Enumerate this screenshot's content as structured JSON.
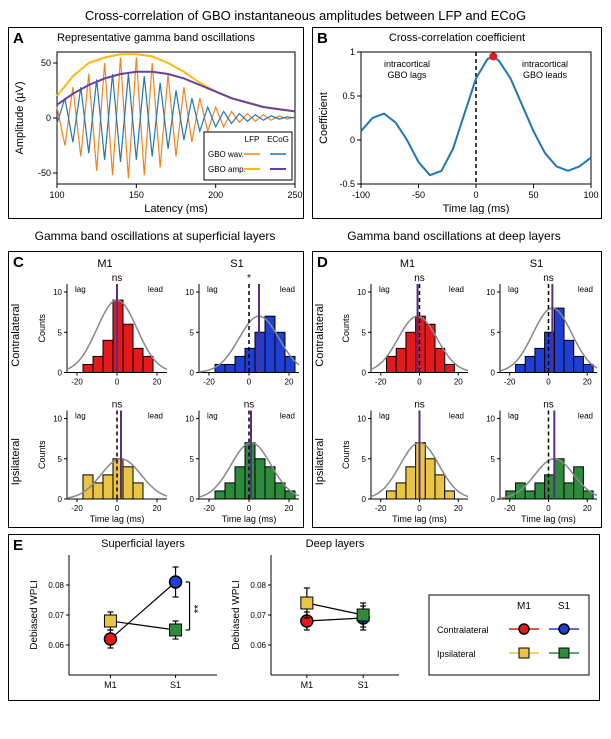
{
  "colors": {
    "lfp_wav": "#f58220",
    "lfp_amp": "#fdb813",
    "ecog_wav": "#1f77b4",
    "ecog_amp": "#6b3fa0",
    "red": "#e31a1c",
    "blue": "#1f3fd4",
    "yellow": "#e8c547",
    "green": "#2e8b3d",
    "gray": "#888888",
    "black": "#000000"
  },
  "mainTitle": "Cross-correlation of GBO instantaneous amplitudes between LFP and ECoG",
  "panelA": {
    "title": "Representative gamma band oscillations",
    "xlabel": "Latency (ms)",
    "ylabel": "Amplitude (µV)",
    "xlim": [
      100,
      250
    ],
    "xticks": [
      100,
      150,
      200,
      250
    ],
    "ylim": [
      -60,
      60
    ],
    "yticks": [
      -50,
      0,
      50
    ],
    "legend": {
      "header": [
        "LFP",
        "ECoG"
      ],
      "rows": [
        "GBO wav.",
        "GBO amp."
      ]
    },
    "series": {
      "lfp_wav": [
        [
          100,
          10
        ],
        [
          105,
          -25
        ],
        [
          110,
          28
        ],
        [
          115,
          -35
        ],
        [
          120,
          40
        ],
        [
          125,
          -48
        ],
        [
          130,
          50
        ],
        [
          135,
          -52
        ],
        [
          140,
          55
        ],
        [
          145,
          -55
        ],
        [
          150,
          55
        ],
        [
          155,
          -52
        ],
        [
          160,
          50
        ],
        [
          165,
          -45
        ],
        [
          170,
          40
        ],
        [
          175,
          -35
        ],
        [
          180,
          28
        ],
        [
          185,
          -22
        ],
        [
          190,
          18
        ],
        [
          195,
          -12
        ],
        [
          200,
          10
        ],
        [
          205,
          -8
        ],
        [
          210,
          6
        ],
        [
          215,
          -4
        ],
        [
          220,
          4
        ],
        [
          225,
          -3
        ],
        [
          230,
          3
        ],
        [
          235,
          -2
        ],
        [
          240,
          2
        ],
        [
          245,
          -1
        ],
        [
          250,
          1
        ]
      ],
      "ecog_wav": [
        [
          100,
          -5
        ],
        [
          105,
          18
        ],
        [
          110,
          -22
        ],
        [
          115,
          28
        ],
        [
          120,
          -32
        ],
        [
          125,
          35
        ],
        [
          130,
          -38
        ],
        [
          135,
          40
        ],
        [
          140,
          -40
        ],
        [
          145,
          40
        ],
        [
          150,
          -38
        ],
        [
          155,
          38
        ],
        [
          160,
          -35
        ],
        [
          165,
          32
        ],
        [
          170,
          -28
        ],
        [
          175,
          25
        ],
        [
          180,
          -20
        ],
        [
          185,
          18
        ],
        [
          190,
          -12
        ],
        [
          195,
          10
        ],
        [
          200,
          -8
        ],
        [
          205,
          6
        ],
        [
          210,
          -5
        ],
        [
          215,
          4
        ],
        [
          220,
          -3
        ],
        [
          225,
          3
        ],
        [
          230,
          -2
        ],
        [
          235,
          2
        ],
        [
          240,
          -1
        ],
        [
          245,
          1
        ],
        [
          250,
          0
        ]
      ],
      "lfp_amp": [
        [
          100,
          20
        ],
        [
          110,
          38
        ],
        [
          120,
          50
        ],
        [
          130,
          55
        ],
        [
          140,
          58
        ],
        [
          150,
          58
        ],
        [
          160,
          56
        ],
        [
          170,
          50
        ],
        [
          180,
          42
        ],
        [
          190,
          32
        ],
        [
          200,
          24
        ],
        [
          210,
          18
        ],
        [
          220,
          14
        ],
        [
          230,
          10
        ],
        [
          240,
          8
        ],
        [
          250,
          6
        ]
      ],
      "ecog_amp": [
        [
          100,
          12
        ],
        [
          110,
          22
        ],
        [
          120,
          30
        ],
        [
          130,
          36
        ],
        [
          140,
          40
        ],
        [
          150,
          42
        ],
        [
          160,
          42
        ],
        [
          170,
          40
        ],
        [
          180,
          36
        ],
        [
          190,
          30
        ],
        [
          200,
          24
        ],
        [
          210,
          18
        ],
        [
          220,
          14
        ],
        [
          230,
          10
        ],
        [
          240,
          8
        ],
        [
          250,
          6
        ]
      ]
    }
  },
  "panelB": {
    "title": "Cross-correlation coefficient",
    "xlabel": "Time lag (ms)",
    "ylabel": "Coefficient",
    "xlim": [
      -100,
      100
    ],
    "xticks": [
      -100,
      -50,
      0,
      50,
      100
    ],
    "ylim": [
      -0.5,
      1
    ],
    "yticks": [
      -0.5,
      0,
      0.5,
      1
    ],
    "annotations": {
      "left": "intracortical\nGBO lags",
      "right": "intracortical\nGBO leads"
    },
    "curve": [
      [
        -100,
        0.1
      ],
      [
        -90,
        0.25
      ],
      [
        -80,
        0.3
      ],
      [
        -70,
        0.2
      ],
      [
        -60,
        0
      ],
      [
        -50,
        -0.25
      ],
      [
        -40,
        -0.4
      ],
      [
        -30,
        -0.35
      ],
      [
        -20,
        -0.1
      ],
      [
        -10,
        0.3
      ],
      [
        0,
        0.7
      ],
      [
        10,
        0.92
      ],
      [
        15,
        0.95
      ],
      [
        20,
        0.9
      ],
      [
        30,
        0.7
      ],
      [
        40,
        0.4
      ],
      [
        50,
        0.1
      ],
      [
        60,
        -0.15
      ],
      [
        70,
        -0.3
      ],
      [
        80,
        -0.35
      ],
      [
        90,
        -0.3
      ],
      [
        100,
        -0.2
      ]
    ],
    "peak": [
      15,
      0.95
    ]
  },
  "sectionTitles": {
    "superficial": "Gamma band oscillations at superficial layers",
    "deep": "Gamma band oscillations at deep layers"
  },
  "rowLabels": [
    "Contralateral",
    "Ipsilateral"
  ],
  "colLabels": [
    "M1",
    "S1"
  ],
  "histCommon": {
    "xlabel": "Time lag (ms)",
    "ylabel": "Counts",
    "xlim": [
      -25,
      25
    ],
    "xticks": [
      -20,
      0,
      20
    ],
    "ylim": [
      0,
      11
    ],
    "yticks": [
      0,
      5,
      10
    ],
    "annotations": [
      "lag",
      "lead"
    ]
  },
  "panelC": {
    "hists": [
      {
        "color": "red",
        "sig": "ns",
        "median": 0,
        "bins": [
          [
            -22,
            0
          ],
          [
            -17,
            1
          ],
          [
            -12,
            2
          ],
          [
            -7,
            4
          ],
          [
            -2,
            9
          ],
          [
            3,
            6
          ],
          [
            8,
            3
          ],
          [
            13,
            2
          ],
          [
            18,
            0
          ]
        ]
      },
      {
        "color": "blue",
        "sig": "*",
        "median": 5,
        "bins": [
          [
            -22,
            0
          ],
          [
            -17,
            1
          ],
          [
            -12,
            1
          ],
          [
            -7,
            2
          ],
          [
            -2,
            3
          ],
          [
            3,
            5
          ],
          [
            8,
            7
          ],
          [
            13,
            5
          ],
          [
            18,
            2
          ]
        ]
      },
      {
        "color": "yellow",
        "sig": "ns",
        "median": 2,
        "bins": [
          [
            -22,
            0
          ],
          [
            -17,
            3
          ],
          [
            -12,
            2
          ],
          [
            -7,
            3
          ],
          [
            -2,
            5
          ],
          [
            3,
            4
          ],
          [
            8,
            2
          ],
          [
            13,
            0
          ],
          [
            18,
            0
          ]
        ]
      },
      {
        "color": "green",
        "sig": "ns",
        "median": 1,
        "bins": [
          [
            -22,
            0
          ],
          [
            -17,
            1
          ],
          [
            -12,
            2
          ],
          [
            -7,
            4
          ],
          [
            -2,
            7
          ],
          [
            3,
            5
          ],
          [
            8,
            4
          ],
          [
            13,
            2
          ],
          [
            18,
            1
          ]
        ]
      }
    ]
  },
  "panelD": {
    "hists": [
      {
        "color": "red",
        "sig": "ns",
        "median": -1,
        "bins": [
          [
            -22,
            0
          ],
          [
            -17,
            2
          ],
          [
            -12,
            3
          ],
          [
            -7,
            5
          ],
          [
            -2,
            7
          ],
          [
            3,
            6
          ],
          [
            8,
            3
          ],
          [
            13,
            1
          ],
          [
            18,
            0
          ]
        ]
      },
      {
        "color": "blue",
        "sig": "ns",
        "median": 2,
        "bins": [
          [
            -22,
            0
          ],
          [
            -17,
            1
          ],
          [
            -12,
            2
          ],
          [
            -7,
            3
          ],
          [
            -2,
            5
          ],
          [
            3,
            8
          ],
          [
            8,
            4
          ],
          [
            13,
            2
          ],
          [
            18,
            1
          ]
        ]
      },
      {
        "color": "yellow",
        "sig": "ns",
        "median": 0,
        "bins": [
          [
            -22,
            0
          ],
          [
            -17,
            1
          ],
          [
            -12,
            2
          ],
          [
            -7,
            4
          ],
          [
            -2,
            7
          ],
          [
            3,
            5
          ],
          [
            8,
            3
          ],
          [
            13,
            1
          ],
          [
            18,
            0
          ]
        ]
      },
      {
        "color": "green",
        "sig": "ns",
        "median": 3,
        "bins": [
          [
            -22,
            1
          ],
          [
            -17,
            2
          ],
          [
            -12,
            1
          ],
          [
            -7,
            2
          ],
          [
            -2,
            3
          ],
          [
            3,
            5
          ],
          [
            8,
            2
          ],
          [
            13,
            4
          ],
          [
            18,
            1
          ]
        ]
      }
    ]
  },
  "panelE": {
    "titles": [
      "Superficial layers",
      "Deep layers"
    ],
    "ylabel": "Debiased WPLI",
    "xlabels": [
      "M1",
      "S1"
    ],
    "ylim": [
      0.05,
      0.09
    ],
    "yticks": [
      0.06,
      0.07,
      0.08
    ],
    "superficial": {
      "contra": {
        "M1": {
          "y": 0.062,
          "err": 0.003
        },
        "S1": {
          "y": 0.081,
          "err": 0.005
        }
      },
      "ipsi": {
        "M1": {
          "y": 0.068,
          "err": 0.003
        },
        "S1": {
          "y": 0.065,
          "err": 0.003
        }
      },
      "sig": "**"
    },
    "deep": {
      "contra": {
        "M1": {
          "y": 0.068,
          "err": 0.003
        },
        "S1": {
          "y": 0.069,
          "err": 0.004
        }
      },
      "ipsi": {
        "M1": {
          "y": 0.074,
          "err": 0.005
        },
        "S1": {
          "y": 0.07,
          "err": 0.004
        }
      }
    },
    "legend": {
      "cols": [
        "M1",
        "S1"
      ],
      "rows": [
        "Contralateral",
        "Ipsilateral"
      ]
    }
  }
}
